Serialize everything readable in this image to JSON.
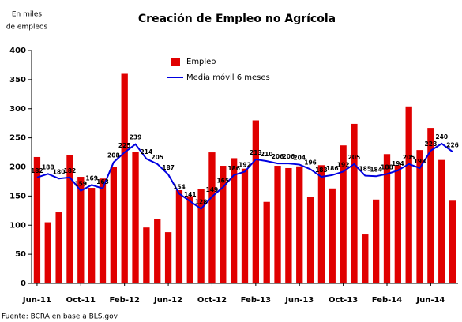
{
  "chart_data": {
    "type": "bar_line",
    "title": "Creación de Empleo no Agrícola",
    "y_label": [
      "En miles",
      "de empleos"
    ],
    "source": "Fuente: BCRA en base a BLS.gov",
    "categories": [
      "Jun-11",
      null,
      null,
      null,
      "Oct-11",
      null,
      null,
      null,
      "Feb-12",
      null,
      null,
      null,
      "Jun-12",
      null,
      null,
      null,
      "Oct-12",
      null,
      null,
      null,
      "Feb-13",
      null,
      null,
      null,
      "Jun-13",
      null,
      null,
      null,
      "Oct-13",
      null,
      null,
      null,
      "Feb-14",
      null,
      null,
      null,
      "Jun-14",
      null,
      null
    ],
    "series": [
      {
        "name": "Empleo",
        "type": "bar",
        "color": "#e00000",
        "values": [
          217,
          105,
          122,
          221,
          183,
          164,
          180,
          200,
          360,
          226,
          96,
          110,
          88,
          160,
          150,
          162,
          225,
          202,
          215,
          197,
          280,
          140,
          202,
          198,
          201,
          149,
          203,
          163,
          237,
          274,
          84,
          144,
          222,
          203,
          304,
          229,
          267,
          212,
          142
        ]
      },
      {
        "name": "Media móvil 6 meses",
        "type": "line",
        "color": "#0000e0",
        "values": [
          182,
          188,
          180,
          182,
          159,
          169,
          163,
          208,
          225,
          239,
          214,
          205,
          187,
          154,
          141,
          128,
          149,
          165,
          186,
          192,
          213,
          210,
          206,
          206,
          204,
          196,
          183,
          186,
          192,
          205,
          185,
          184,
          188,
          194,
          205,
          198,
          228,
          240,
          226
        ]
      }
    ],
    "ylim": [
      0,
      400
    ],
    "yticks": [
      0,
      50,
      100,
      150,
      200,
      250,
      300,
      350,
      400
    ],
    "legend": "top"
  }
}
